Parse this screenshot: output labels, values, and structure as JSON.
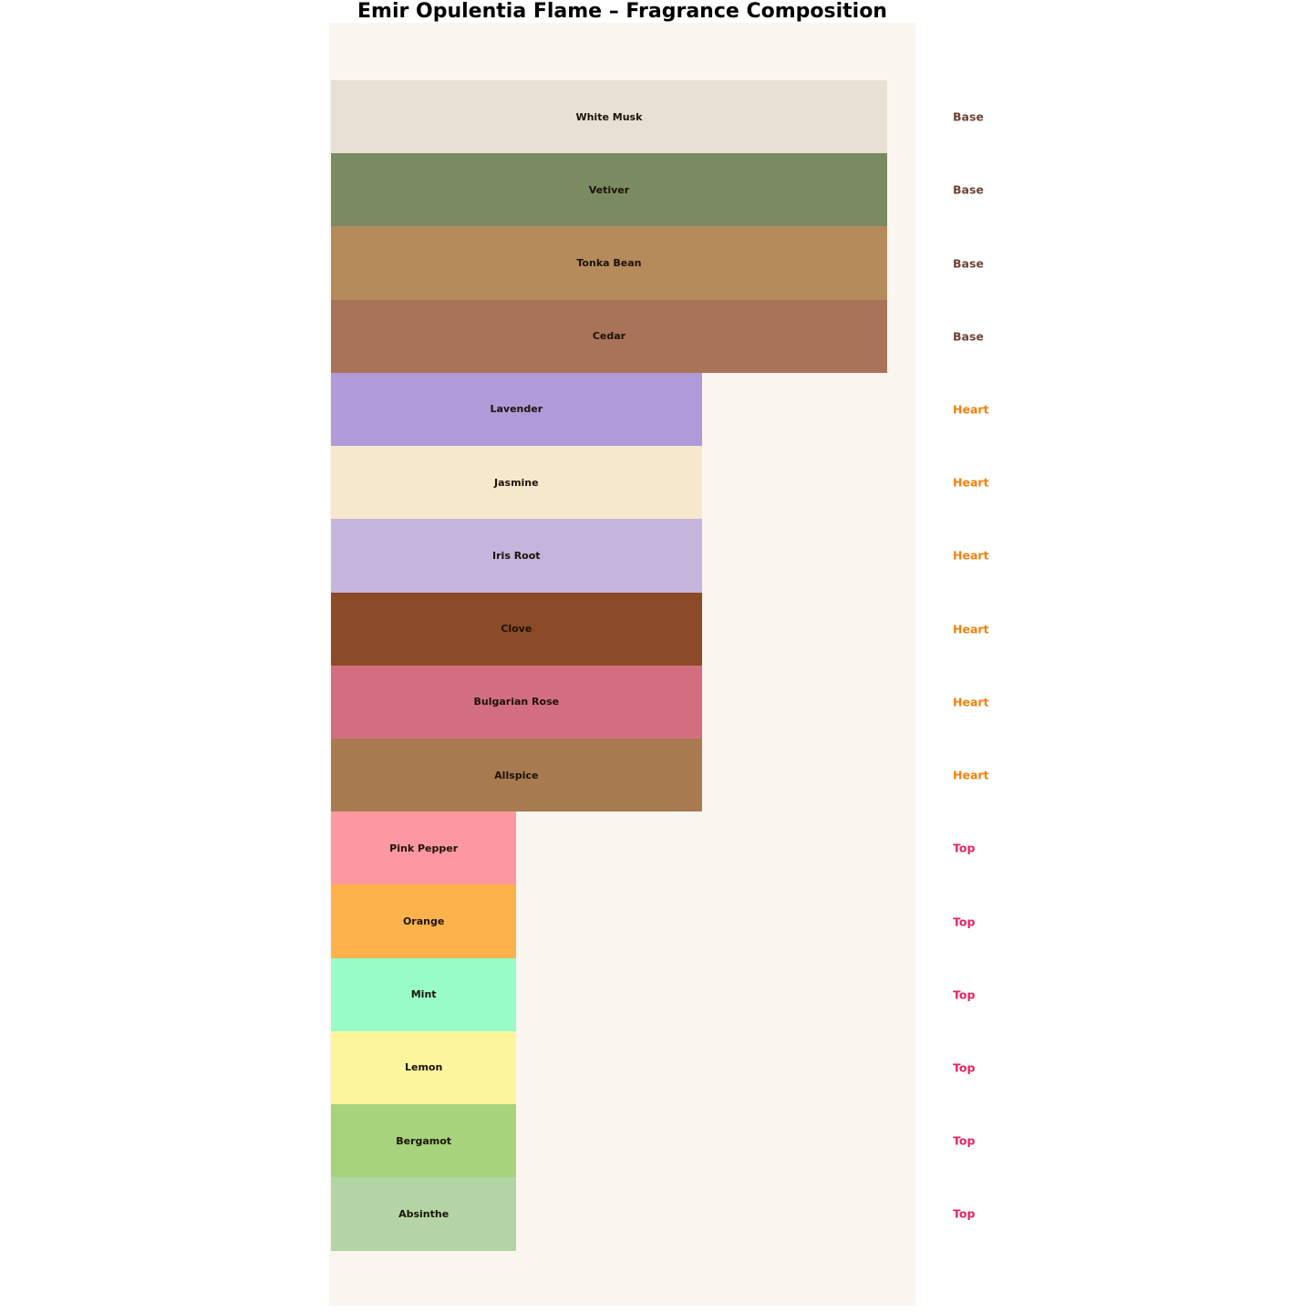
{
  "title": "Emir Opulentia Flame – Fragrance Composition",
  "colors": {
    "page_bg": "#ffffff",
    "panel_bg": "#faf6ef",
    "bar_label_text": "#1c1208",
    "category_colors": {
      "Base": "#6d4436",
      "Heart": "#f5800b",
      "Top": "#e82460"
    }
  },
  "chart_data": {
    "type": "bar",
    "orientation": "horizontal",
    "title": "Emir Opulentia Flame – Fragrance Composition",
    "xlabel": "",
    "ylabel": "",
    "axes_visible": false,
    "grid": false,
    "legend_position": "right-inline-labels",
    "xlim": [
      0,
      3.16
    ],
    "categories": [
      "White Musk",
      "Vetiver",
      "Tonka Bean",
      "Cedar",
      "Lavender",
      "Jasmine",
      "Iris Root",
      "Clove",
      "Bulgarian Rose",
      "Allspice",
      "Pink Pepper",
      "Orange",
      "Mint",
      "Lemon",
      "Bergamot",
      "Absinthe"
    ],
    "values": [
      3,
      3,
      3,
      3,
      2,
      2,
      2,
      2,
      2,
      2,
      1,
      1,
      1,
      1,
      1,
      1
    ],
    "groups": [
      "Base",
      "Base",
      "Base",
      "Base",
      "Heart",
      "Heart",
      "Heart",
      "Heart",
      "Heart",
      "Heart",
      "Top",
      "Top",
      "Top",
      "Top",
      "Top",
      "Top"
    ],
    "notes": [
      {
        "name": "White Musk",
        "group": "Base",
        "value": 3,
        "color": "#e8e0d2"
      },
      {
        "name": "Vetiver",
        "group": "Base",
        "value": 3,
        "color": "#7b8b61"
      },
      {
        "name": "Tonka Bean",
        "group": "Base",
        "value": 3,
        "color": "#b58b5c"
      },
      {
        "name": "Cedar",
        "group": "Base",
        "value": 3,
        "color": "#a9735a"
      },
      {
        "name": "Lavender",
        "group": "Heart",
        "value": 2,
        "color": "#b09ad8"
      },
      {
        "name": "Jasmine",
        "group": "Heart",
        "value": 2,
        "color": "#f6e8cc"
      },
      {
        "name": "Iris Root",
        "group": "Heart",
        "value": 2,
        "color": "#c5b5dd"
      },
      {
        "name": "Clove",
        "group": "Heart",
        "value": 2,
        "color": "#8b4a28"
      },
      {
        "name": "Bulgarian Rose",
        "group": "Heart",
        "value": 2,
        "color": "#d36e80"
      },
      {
        "name": "Allspice",
        "group": "Heart",
        "value": 2,
        "color": "#a87a50"
      },
      {
        "name": "Pink Pepper",
        "group": "Top",
        "value": 1,
        "color": "#fd98a0"
      },
      {
        "name": "Orange",
        "group": "Top",
        "value": 1,
        "color": "#feb24c"
      },
      {
        "name": "Mint",
        "group": "Top",
        "value": 1,
        "color": "#98fcc8"
      },
      {
        "name": "Lemon",
        "group": "Top",
        "value": 1,
        "color": "#fdf49e"
      },
      {
        "name": "Bergamot",
        "group": "Top",
        "value": 1,
        "color": "#a6d37c"
      },
      {
        "name": "Absinthe",
        "group": "Top",
        "value": 1,
        "color": "#b3d4a4"
      }
    ]
  }
}
